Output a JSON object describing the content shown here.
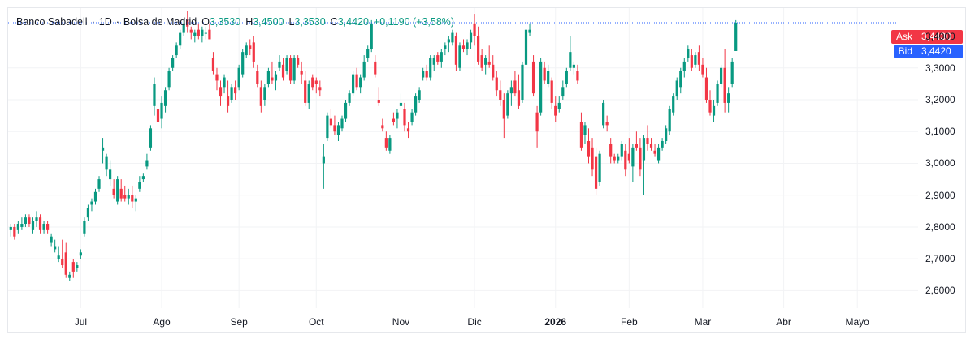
{
  "header": {
    "symbol": "Banco Sabadell",
    "interval": "1D",
    "exchange": "Bolsa de Madrid",
    "separator": "·",
    "open_label": "O",
    "open": "3,3530",
    "high_label": "H",
    "high": "3,4500",
    "low_label": "L",
    "low": "3,3530",
    "close_label": "C",
    "close": "3,4420",
    "change": "+0,1190 (+3,58%)"
  },
  "quote": {
    "ask_label": "Ask",
    "ask_value": "3,4430",
    "ask_color": "#f23645",
    "bid_label": "Bid",
    "bid_value": "3,4420",
    "bid_color": "#2962ff"
  },
  "colors": {
    "up": "#089981",
    "down": "#f23645",
    "grid": "#f2f3f5",
    "price_line": "#2962ff"
  },
  "chart_data": {
    "type": "candlestick",
    "y_axis": {
      "position": "right",
      "range": [
        2.545,
        3.488
      ],
      "ticks": [
        2.6,
        2.7,
        2.8,
        2.9,
        3.0,
        3.1,
        3.2,
        3.3,
        3.4
      ],
      "tick_labels": [
        "2,6000",
        "2,7000",
        "2,8000",
        "2,9000",
        "3,0000",
        "3,1000",
        "3,2000",
        "3,3000",
        "3,4000"
      ]
    },
    "x_axis": {
      "labels": [
        {
          "text": "Jul",
          "bar": 19,
          "bold": false
        },
        {
          "text": "Ago",
          "bar": 41,
          "bold": false
        },
        {
          "text": "Sep",
          "bar": 62,
          "bold": false
        },
        {
          "text": "Oct",
          "bar": 83,
          "bold": false
        },
        {
          "text": "Nov",
          "bar": 106,
          "bold": false
        },
        {
          "text": "Dic",
          "bar": 126,
          "bold": false
        },
        {
          "text": "2026",
          "bar": 148,
          "bold": true
        },
        {
          "text": "Feb",
          "bar": 168,
          "bold": false
        },
        {
          "text": "Mar",
          "bar": 188,
          "bold": false
        },
        {
          "text": "Abr",
          "bar": 210,
          "bold": false
        },
        {
          "text": "Mayo",
          "bar": 230,
          "bold": false
        }
      ]
    },
    "last_price_line": 3.442,
    "grid": true,
    "ohlc": [
      [
        2.79,
        2.81,
        2.77,
        2.8
      ],
      [
        2.8,
        2.81,
        2.76,
        2.77
      ],
      [
        2.79,
        2.82,
        2.78,
        2.81
      ],
      [
        2.8,
        2.83,
        2.79,
        2.81
      ],
      [
        2.81,
        2.84,
        2.8,
        2.83
      ],
      [
        2.83,
        2.84,
        2.8,
        2.81
      ],
      [
        2.79,
        2.83,
        2.78,
        2.82
      ],
      [
        2.82,
        2.85,
        2.8,
        2.83
      ],
      [
        2.83,
        2.84,
        2.78,
        2.79
      ],
      [
        2.79,
        2.82,
        2.78,
        2.81
      ],
      [
        2.81,
        2.82,
        2.78,
        2.79
      ],
      [
        2.75,
        2.78,
        2.74,
        2.77
      ],
      [
        2.73,
        2.76,
        2.72,
        2.74
      ],
      [
        2.7,
        2.74,
        2.69,
        2.71
      ],
      [
        2.7,
        2.76,
        2.67,
        2.68
      ],
      [
        2.72,
        2.75,
        2.64,
        2.65
      ],
      [
        2.64,
        2.66,
        2.63,
        2.65
      ],
      [
        2.69,
        2.7,
        2.64,
        2.66
      ],
      [
        2.67,
        2.69,
        2.66,
        2.68
      ],
      [
        2.71,
        2.73,
        2.7,
        2.72
      ],
      [
        2.78,
        2.83,
        2.77,
        2.82
      ],
      [
        2.83,
        2.87,
        2.82,
        2.86
      ],
      [
        2.87,
        2.89,
        2.85,
        2.88
      ],
      [
        2.88,
        2.92,
        2.87,
        2.91
      ],
      [
        2.92,
        2.96,
        2.91,
        2.95
      ],
      [
        3.04,
        3.08,
        3.0,
        3.05
      ],
      [
        2.98,
        3.03,
        2.96,
        3.02
      ],
      [
        2.95,
        3.01,
        2.93,
        2.98
      ],
      [
        2.92,
        2.95,
        2.89,
        2.9
      ],
      [
        2.88,
        2.96,
        2.87,
        2.95
      ],
      [
        2.92,
        2.95,
        2.88,
        2.89
      ],
      [
        2.9,
        2.93,
        2.88,
        2.89
      ],
      [
        2.89,
        2.92,
        2.87,
        2.9
      ],
      [
        2.9,
        2.93,
        2.86,
        2.88
      ],
      [
        2.88,
        2.9,
        2.85,
        2.89
      ],
      [
        2.92,
        2.96,
        2.91,
        2.94
      ],
      [
        2.95,
        2.97,
        2.94,
        2.96
      ],
      [
        2.99,
        3.03,
        2.98,
        3.01
      ],
      [
        3.05,
        3.12,
        3.04,
        3.11
      ],
      [
        3.18,
        3.27,
        3.15,
        3.25
      ],
      [
        3.17,
        3.22,
        3.1,
        3.13
      ],
      [
        3.14,
        3.21,
        3.11,
        3.19
      ],
      [
        3.18,
        3.24,
        3.16,
        3.23
      ],
      [
        3.24,
        3.3,
        3.23,
        3.29
      ],
      [
        3.3,
        3.34,
        3.29,
        3.33
      ],
      [
        3.34,
        3.38,
        3.33,
        3.37
      ],
      [
        3.37,
        3.42,
        3.36,
        3.41
      ],
      [
        3.41,
        3.45,
        3.4,
        3.44
      ],
      [
        3.45,
        3.48,
        3.41,
        3.43
      ],
      [
        3.42,
        3.43,
        3.39,
        3.41
      ],
      [
        3.4,
        3.42,
        3.38,
        3.41
      ],
      [
        3.42,
        3.44,
        3.39,
        3.4
      ],
      [
        3.4,
        3.43,
        3.38,
        3.42
      ],
      [
        3.41,
        3.43,
        3.39,
        3.41
      ],
      [
        3.42,
        3.44,
        3.39,
        3.39
      ],
      [
        3.33,
        3.35,
        3.28,
        3.29
      ],
      [
        3.28,
        3.3,
        3.23,
        3.26
      ],
      [
        3.24,
        3.26,
        3.18,
        3.21
      ],
      [
        3.24,
        3.28,
        3.22,
        3.27
      ],
      [
        3.21,
        3.26,
        3.16,
        3.18
      ],
      [
        3.2,
        3.25,
        3.19,
        3.24
      ],
      [
        3.24,
        3.26,
        3.2,
        3.22
      ],
      [
        3.24,
        3.31,
        3.23,
        3.3
      ],
      [
        3.28,
        3.36,
        3.27,
        3.35
      ],
      [
        3.34,
        3.38,
        3.33,
        3.37
      ],
      [
        3.37,
        3.39,
        3.34,
        3.36
      ],
      [
        3.38,
        3.4,
        3.3,
        3.32
      ],
      [
        3.29,
        3.31,
        3.24,
        3.25
      ],
      [
        3.24,
        3.26,
        3.16,
        3.18
      ],
      [
        3.2,
        3.25,
        3.18,
        3.24
      ],
      [
        3.25,
        3.3,
        3.24,
        3.29
      ],
      [
        3.27,
        3.32,
        3.25,
        3.26
      ],
      [
        3.26,
        3.29,
        3.23,
        3.28
      ],
      [
        3.3,
        3.34,
        3.29,
        3.32
      ],
      [
        3.31,
        3.33,
        3.26,
        3.27
      ],
      [
        3.29,
        3.34,
        3.28,
        3.33
      ],
      [
        3.33,
        3.34,
        3.25,
        3.26
      ],
      [
        3.26,
        3.34,
        3.25,
        3.33
      ],
      [
        3.33,
        3.34,
        3.3,
        3.31
      ],
      [
        3.29,
        3.32,
        3.25,
        3.28
      ],
      [
        3.26,
        3.29,
        3.18,
        3.19
      ],
      [
        3.19,
        3.26,
        3.17,
        3.25
      ],
      [
        3.27,
        3.28,
        3.23,
        3.24
      ],
      [
        3.26,
        3.27,
        3.22,
        3.25
      ],
      [
        3.24,
        3.26,
        3.21,
        3.23
      ],
      [
        3.0,
        3.06,
        2.92,
        3.02
      ],
      [
        3.08,
        3.16,
        3.07,
        3.15
      ],
      [
        3.14,
        3.17,
        3.11,
        3.12
      ],
      [
        3.12,
        3.15,
        3.09,
        3.1
      ],
      [
        3.09,
        3.13,
        3.07,
        3.12
      ],
      [
        3.11,
        3.15,
        3.1,
        3.14
      ],
      [
        3.14,
        3.2,
        3.13,
        3.19
      ],
      [
        3.19,
        3.23,
        3.18,
        3.22
      ],
      [
        3.22,
        3.29,
        3.21,
        3.28
      ],
      [
        3.28,
        3.3,
        3.23,
        3.24
      ],
      [
        3.24,
        3.28,
        3.22,
        3.27
      ],
      [
        3.27,
        3.34,
        3.26,
        3.32
      ],
      [
        3.33,
        3.37,
        3.32,
        3.36
      ],
      [
        3.36,
        3.45,
        3.35,
        3.44
      ],
      [
        3.32,
        3.34,
        3.27,
        3.28
      ],
      [
        3.2,
        3.24,
        3.18,
        3.19
      ],
      [
        3.12,
        3.14,
        3.1,
        3.11
      ],
      [
        3.08,
        3.1,
        3.04,
        3.05
      ],
      [
        3.04,
        3.09,
        3.03,
        3.08
      ],
      [
        3.14,
        3.16,
        3.12,
        3.13
      ],
      [
        3.14,
        3.17,
        3.11,
        3.16
      ],
      [
        3.18,
        3.22,
        3.17,
        3.19
      ],
      [
        3.17,
        3.19,
        3.1,
        3.12
      ],
      [
        3.11,
        3.13,
        3.08,
        3.1
      ],
      [
        3.13,
        3.17,
        3.12,
        3.16
      ],
      [
        3.16,
        3.22,
        3.15,
        3.21
      ],
      [
        3.2,
        3.24,
        3.19,
        3.23
      ],
      [
        3.27,
        3.3,
        3.26,
        3.29
      ],
      [
        3.29,
        3.31,
        3.26,
        3.27
      ],
      [
        3.27,
        3.34,
        3.26,
        3.33
      ],
      [
        3.31,
        3.34,
        3.29,
        3.33
      ],
      [
        3.34,
        3.35,
        3.31,
        3.32
      ],
      [
        3.32,
        3.36,
        3.3,
        3.35
      ],
      [
        3.36,
        3.38,
        3.34,
        3.37
      ],
      [
        3.38,
        3.4,
        3.35,
        3.39
      ],
      [
        3.38,
        3.42,
        3.37,
        3.41
      ],
      [
        3.4,
        3.41,
        3.29,
        3.31
      ],
      [
        3.3,
        3.38,
        3.29,
        3.37
      ],
      [
        3.37,
        3.39,
        3.35,
        3.36
      ],
      [
        3.36,
        3.39,
        3.34,
        3.38
      ],
      [
        3.38,
        3.42,
        3.36,
        3.41
      ],
      [
        3.44,
        3.47,
        3.37,
        3.4
      ],
      [
        3.4,
        3.43,
        3.31,
        3.32
      ],
      [
        3.34,
        3.36,
        3.29,
        3.3
      ],
      [
        3.31,
        3.34,
        3.28,
        3.33
      ],
      [
        3.32,
        3.37,
        3.3,
        3.31
      ],
      [
        3.31,
        3.34,
        3.26,
        3.27
      ],
      [
        3.27,
        3.29,
        3.21,
        3.23
      ],
      [
        3.23,
        3.26,
        3.18,
        3.2
      ],
      [
        3.2,
        3.22,
        3.08,
        3.14
      ],
      [
        3.15,
        3.23,
        3.14,
        3.22
      ],
      [
        3.22,
        3.26,
        3.18,
        3.24
      ],
      [
        3.26,
        3.29,
        3.21,
        3.22
      ],
      [
        3.23,
        3.28,
        3.17,
        3.18
      ],
      [
        3.2,
        3.32,
        3.19,
        3.31
      ],
      [
        3.31,
        3.45,
        3.3,
        3.42
      ],
      [
        3.41,
        3.44,
        3.4,
        3.42
      ],
      [
        3.32,
        3.34,
        3.21,
        3.22
      ],
      [
        3.16,
        3.18,
        3.05,
        3.1
      ],
      [
        3.16,
        3.33,
        3.15,
        3.32
      ],
      [
        3.3,
        3.32,
        3.25,
        3.26
      ],
      [
        3.25,
        3.31,
        3.24,
        3.29
      ],
      [
        3.26,
        3.27,
        3.17,
        3.19
      ],
      [
        3.18,
        3.21,
        3.13,
        3.15
      ],
      [
        3.17,
        3.21,
        3.16,
        3.19
      ],
      [
        3.21,
        3.26,
        3.2,
        3.24
      ],
      [
        3.25,
        3.3,
        3.24,
        3.29
      ],
      [
        3.3,
        3.4,
        3.29,
        3.35
      ],
      [
        3.3,
        3.32,
        3.28,
        3.31
      ],
      [
        3.29,
        3.31,
        3.25,
        3.26
      ],
      [
        3.13,
        3.16,
        3.04,
        3.05
      ],
      [
        3.09,
        3.13,
        3.06,
        3.12
      ],
      [
        3.07,
        3.11,
        3.0,
        3.02
      ],
      [
        3.05,
        3.08,
        2.96,
        2.98
      ],
      [
        3.02,
        3.05,
        2.9,
        2.92
      ],
      [
        2.94,
        3.04,
        2.93,
        3.03
      ],
      [
        3.12,
        3.2,
        3.11,
        3.19
      ],
      [
        3.13,
        3.15,
        3.1,
        3.12
      ],
      [
        3.06,
        3.08,
        3.0,
        3.02
      ],
      [
        3.02,
        3.03,
        3.0,
        3.01
      ],
      [
        3.01,
        3.03,
        3.0,
        3.02
      ],
      [
        3.02,
        3.07,
        3.01,
        3.06
      ],
      [
        3.04,
        3.06,
        2.96,
        2.98
      ],
      [
        3.03,
        3.08,
        3.0,
        3.01
      ],
      [
        2.99,
        3.06,
        2.94,
        3.05
      ],
      [
        3.06,
        3.1,
        3.04,
        3.05
      ],
      [
        3.05,
        3.08,
        2.96,
        2.98
      ],
      [
        3.01,
        3.09,
        2.9,
        3.08
      ],
      [
        3.08,
        3.12,
        3.04,
        3.06
      ],
      [
        3.06,
        3.08,
        3.04,
        3.05
      ],
      [
        3.04,
        3.06,
        3.02,
        3.03
      ],
      [
        3.01,
        3.06,
        3.0,
        3.05
      ],
      [
        3.05,
        3.08,
        3.04,
        3.07
      ],
      [
        3.07,
        3.12,
        3.06,
        3.11
      ],
      [
        3.1,
        3.18,
        3.09,
        3.17
      ],
      [
        3.16,
        3.22,
        3.15,
        3.21
      ],
      [
        3.21,
        3.27,
        3.2,
        3.26
      ],
      [
        3.24,
        3.3,
        3.22,
        3.29
      ],
      [
        3.29,
        3.33,
        3.27,
        3.32
      ],
      [
        3.33,
        3.37,
        3.32,
        3.36
      ],
      [
        3.34,
        3.36,
        3.29,
        3.3
      ],
      [
        3.31,
        3.35,
        3.3,
        3.34
      ],
      [
        3.35,
        3.37,
        3.29,
        3.31
      ],
      [
        3.31,
        3.33,
        3.27,
        3.28
      ],
      [
        3.27,
        3.3,
        3.19,
        3.2
      ],
      [
        3.2,
        3.23,
        3.15,
        3.16
      ],
      [
        3.15,
        3.2,
        3.13,
        3.18
      ],
      [
        3.19,
        3.26,
        3.18,
        3.25
      ],
      [
        3.25,
        3.31,
        3.24,
        3.3
      ],
      [
        3.3,
        3.36,
        3.16,
        3.19
      ],
      [
        3.19,
        3.24,
        3.16,
        3.22
      ],
      [
        3.25,
        3.33,
        3.24,
        3.32
      ],
      [
        3.353,
        3.45,
        3.353,
        3.442
      ]
    ]
  }
}
